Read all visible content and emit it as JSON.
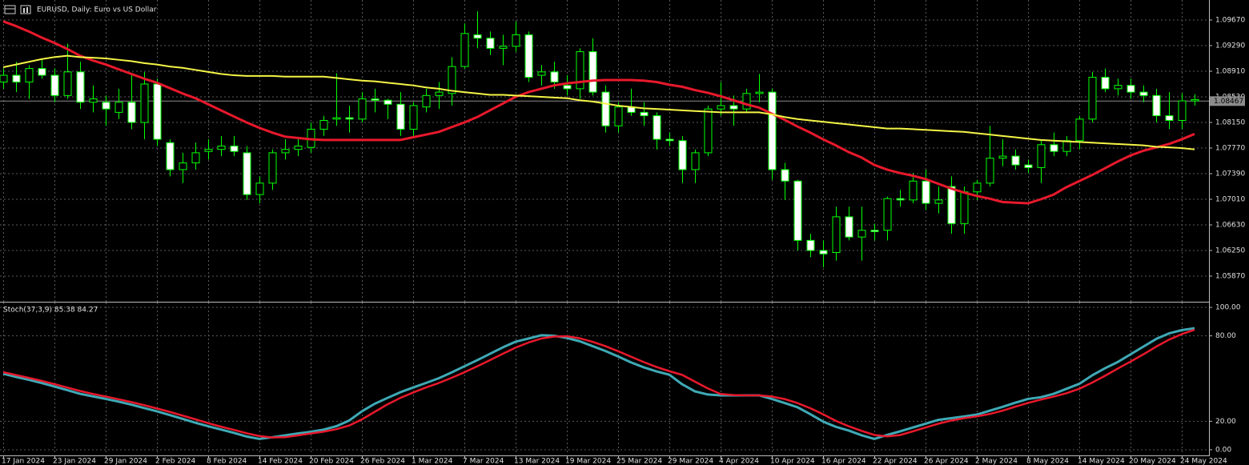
{
  "chart_data": [
    {
      "type": "candlestick",
      "title": "EURUSD, Daily:  Euro vs US Dollar",
      "categories": [
        "17 Jan 2024",
        null,
        null,
        null,
        "23 Jan 2024",
        null,
        null,
        null,
        "29 Jan 2024",
        null,
        null,
        null,
        "2 Feb 2024",
        null,
        null,
        null,
        "8 Feb 2024",
        null,
        null,
        null,
        "14 Feb 2024",
        null,
        null,
        null,
        "20 Feb 2024",
        null,
        null,
        null,
        "26 Feb 2024",
        null,
        null,
        null,
        "1 Mar 2024",
        null,
        null,
        null,
        "7 Mar 2024",
        null,
        null,
        null,
        "13 Mar 2024",
        null,
        null,
        null,
        "19 Mar 2024",
        null,
        null,
        null,
        "25 Mar 2024",
        null,
        null,
        null,
        "29 Mar 2024",
        null,
        null,
        null,
        "4 Apr 2024",
        null,
        null,
        null,
        "10 Apr 2024",
        null,
        null,
        null,
        "16 Apr 2024",
        null,
        null,
        null,
        "22 Apr 2024",
        null,
        null,
        null,
        "26 Apr 2024",
        null,
        null,
        null,
        "2 May 2024",
        null,
        null,
        null,
        "8 May 2024",
        null,
        null,
        null,
        "14 May 2024",
        null,
        null,
        null,
        "20 May 2024",
        null,
        null,
        null,
        "24 May 2024",
        null
      ],
      "open": [
        1.0875,
        1.0885,
        1.0875,
        1.0895,
        1.0885,
        1.0855,
        1.089,
        1.0845,
        1.0845,
        1.083,
        1.0845,
        1.0815,
        1.0872,
        1.0785,
        1.0745,
        1.0755,
        1.0772,
        1.0775,
        1.078,
        1.077,
        1.0708,
        1.0725,
        1.077,
        1.0775,
        1.0778,
        1.0805,
        1.082,
        1.0822,
        1.082,
        1.085,
        1.0848,
        1.0842,
        1.0805,
        1.0838,
        1.0855,
        1.0858,
        1.0898,
        1.0945,
        1.094,
        1.0925,
        1.0928,
        1.0945,
        1.0885,
        1.089,
        1.087,
        1.0865,
        1.092,
        1.086,
        1.081,
        1.0838,
        1.083,
        1.0825,
        1.079,
        1.0788,
        1.0745,
        1.077,
        1.0835,
        1.084,
        1.0835,
        1.0858,
        1.086,
        1.0745,
        1.0728,
        1.064,
        1.0625,
        1.0622,
        1.0675,
        1.0645,
        1.0655,
        1.0655,
        1.0702,
        1.07,
        1.0728,
        1.0695,
        1.072,
        1.0665,
        1.0712,
        1.0725,
        1.0762,
        1.0765,
        1.0752,
        1.0748,
        1.0782,
        1.0772,
        1.0788,
        1.082,
        1.0882,
        1.0865,
        1.087,
        1.086,
        1.0855,
        1.0825,
        1.0818,
        1.0847
      ],
      "high": [
        1.0895,
        1.0905,
        1.09,
        1.091,
        1.0895,
        1.0932,
        1.0905,
        1.087,
        1.0855,
        1.0865,
        1.0885,
        1.089,
        1.088,
        1.079,
        1.077,
        1.0785,
        1.079,
        1.0795,
        1.0795,
        1.078,
        1.0735,
        1.0775,
        1.079,
        1.079,
        1.0815,
        1.0825,
        1.0888,
        1.084,
        1.086,
        1.0865,
        1.085,
        1.086,
        1.0845,
        1.0865,
        1.0875,
        1.0912,
        1.0962,
        1.098,
        1.095,
        1.0945,
        1.0965,
        1.095,
        1.09,
        1.0905,
        1.0885,
        1.0925,
        1.094,
        1.087,
        1.0845,
        1.0865,
        1.0845,
        1.083,
        1.08,
        1.0795,
        1.0775,
        1.084,
        1.0875,
        1.0855,
        1.0865,
        1.0887,
        1.0865,
        1.0755,
        1.073,
        1.065,
        1.064,
        1.069,
        1.069,
        1.069,
        1.0665,
        1.0705,
        1.0715,
        1.074,
        1.0745,
        1.072,
        1.0735,
        1.072,
        1.073,
        1.081,
        1.079,
        1.0775,
        1.076,
        1.079,
        1.08,
        1.0795,
        1.0825,
        1.089,
        1.0895,
        1.088,
        1.088,
        1.087,
        1.0865,
        1.086,
        1.0858,
        1.0857
      ],
      "low": [
        1.0865,
        1.086,
        1.085,
        1.088,
        1.0845,
        1.085,
        1.0835,
        1.083,
        1.081,
        1.082,
        1.0805,
        1.079,
        1.078,
        1.0735,
        1.0725,
        1.0745,
        1.076,
        1.0765,
        1.0765,
        1.07,
        1.0695,
        1.0715,
        1.076,
        1.0765,
        1.077,
        1.0795,
        1.081,
        1.08,
        1.0815,
        1.083,
        1.082,
        1.0795,
        1.0795,
        1.083,
        1.0835,
        1.084,
        1.0895,
        1.0925,
        1.0915,
        1.09,
        1.092,
        1.0875,
        1.087,
        1.0865,
        1.0855,
        1.085,
        1.0855,
        1.08,
        1.08,
        1.0825,
        1.081,
        1.0775,
        1.078,
        1.0725,
        1.0725,
        1.0765,
        1.0825,
        1.081,
        1.083,
        1.0845,
        1.073,
        1.07,
        1.0625,
        1.0615,
        1.06,
        1.061,
        1.064,
        1.061,
        1.064,
        1.064,
        1.069,
        1.0695,
        1.0685,
        1.068,
        1.065,
        1.065,
        1.07,
        1.072,
        1.075,
        1.0745,
        1.074,
        1.0725,
        1.0765,
        1.0765,
        1.0775,
        1.0815,
        1.086,
        1.0855,
        1.085,
        1.0845,
        1.0815,
        1.0805,
        1.0805,
        1.084
      ],
      "close": [
        1.0885,
        1.0875,
        1.0895,
        1.0885,
        1.0855,
        1.089,
        1.0845,
        1.085,
        1.0835,
        1.0845,
        1.0815,
        1.0872,
        1.079,
        1.0745,
        1.0755,
        1.077,
        1.0775,
        1.078,
        1.0772,
        1.0708,
        1.0725,
        1.077,
        1.0775,
        1.078,
        1.0805,
        1.0818,
        1.0822,
        1.082,
        1.085,
        1.0848,
        1.0842,
        1.0805,
        1.084,
        1.0855,
        1.086,
        1.0898,
        1.0947,
        1.094,
        1.0925,
        1.0928,
        1.0945,
        1.0882,
        1.089,
        1.0875,
        1.0865,
        1.092,
        1.086,
        1.081,
        1.0838,
        1.083,
        1.0825,
        1.079,
        1.0788,
        1.0745,
        1.077,
        1.0835,
        1.084,
        1.0835,
        1.0858,
        1.086,
        1.0745,
        1.0728,
        1.064,
        1.0625,
        1.062,
        1.0675,
        1.0645,
        1.0655,
        1.0653,
        1.0702,
        1.07,
        1.0728,
        1.0695,
        1.07,
        1.0665,
        1.0712,
        1.0725,
        1.0762,
        1.0765,
        1.0752,
        1.0748,
        1.0782,
        1.0772,
        1.0788,
        1.082,
        1.0882,
        1.0865,
        1.087,
        1.086,
        1.0855,
        1.0825,
        1.0818,
        1.0847,
        1.0849
      ],
      "up_color": "#000000",
      "down_color": "#ffffff",
      "wick_color": "#00ff00",
      "series": [
        {
          "color": "#e8192c",
          "values": [
            1.0965,
            1.0958,
            1.095,
            1.0941,
            1.0933,
            1.0924,
            1.0914,
            1.0907,
            1.0901,
            1.0894,
            1.0887,
            1.088,
            1.0874,
            1.0866,
            1.0858,
            1.0851,
            1.0842,
            1.0833,
            1.0824,
            1.0815,
            1.0807,
            1.08,
            1.0794,
            1.0792,
            1.079,
            1.0789,
            1.0789,
            1.0789,
            1.0789,
            1.0789,
            1.0789,
            1.0789,
            1.0793,
            1.0797,
            1.0801,
            1.0808,
            1.0815,
            1.0823,
            1.0833,
            1.0843,
            1.0853,
            1.086,
            1.0865,
            1.087,
            1.0873,
            1.0875,
            1.0877,
            1.0878,
            1.0878,
            1.0878,
            1.0877,
            1.0875,
            1.0871,
            1.0868,
            1.0863,
            1.0859,
            1.0854,
            1.0848,
            1.0842,
            1.0837,
            1.0828,
            1.0819,
            1.0809,
            1.08,
            1.079,
            1.0781,
            1.0771,
            1.0763,
            1.0752,
            1.0745,
            1.074,
            1.0736,
            1.0731,
            1.0724,
            1.0717,
            1.0711,
            1.0706,
            1.0702,
            1.0697,
            1.0696,
            1.0695,
            1.0701,
            1.0708,
            1.0719,
            1.0728,
            1.0737,
            1.0747,
            1.0757,
            1.0766,
            1.0773,
            1.0778,
            1.0783,
            1.079,
            1.0798
          ]
        },
        {
          "color": "#f5f547",
          "values": [
            1.0897,
            1.0901,
            1.0905,
            1.0909,
            1.0912,
            1.0914,
            1.0912,
            1.0911,
            1.091,
            1.0908,
            1.0906,
            1.0903,
            1.0901,
            1.0898,
            1.0896,
            1.0893,
            1.089,
            1.0887,
            1.0885,
            1.0884,
            1.0884,
            1.0884,
            1.0883,
            1.0883,
            1.0883,
            1.0883,
            1.0881,
            1.0879,
            1.0877,
            1.0876,
            1.0874,
            1.0872,
            1.087,
            1.0867,
            1.0865,
            1.0862,
            1.086,
            1.0858,
            1.0856,
            1.0856,
            1.0855,
            1.0854,
            1.0853,
            1.0852,
            1.0851,
            1.0848,
            1.0846,
            1.0843,
            1.084,
            1.0838,
            1.0836,
            1.0835,
            1.0834,
            1.0833,
            1.0832,
            1.0831,
            1.083,
            1.083,
            1.083,
            1.083,
            1.0827,
            1.0823,
            1.082,
            1.0818,
            1.0816,
            1.0814,
            1.0812,
            1.081,
            1.0808,
            1.0806,
            1.0806,
            1.0805,
            1.0804,
            1.0803,
            1.0802,
            1.0801,
            1.0799,
            1.0797,
            1.0795,
            1.0793,
            1.0791,
            1.0789,
            1.0788,
            1.0787,
            1.0786,
            1.0785,
            1.0784,
            1.0783,
            1.0782,
            1.0781,
            1.0779,
            1.0778,
            1.0777,
            1.0775
          ]
        }
      ],
      "current_price": 1.08467,
      "ylim": [
        1.0549,
        1.09967
      ],
      "yticks": [
        {
          "value": 1.0967,
          "label": "1.09670"
        },
        {
          "value": 1.0929,
          "label": "1.09290"
        },
        {
          "value": 1.0891,
          "label": "1.08910"
        },
        {
          "value": 1.0853,
          "label": "1.08530"
        },
        {
          "value": 1.0815,
          "label": "1.08150"
        },
        {
          "value": 1.0777,
          "label": "1.07770"
        },
        {
          "value": 1.0739,
          "label": "1.07390"
        },
        {
          "value": 1.0701,
          "label": "1.07010"
        },
        {
          "value": 1.0663,
          "label": "1.06630"
        },
        {
          "value": 1.0625,
          "label": "1.06250"
        },
        {
          "value": 1.0587,
          "label": "1.05870"
        }
      ],
      "grid": true
    },
    {
      "type": "line",
      "title": "Stoch(37,3,9) 85.38 84.27",
      "series": [
        {
          "color": "#3fa9b5",
          "values": [
            53.4,
            51.2,
            49.1,
            46.9,
            44.4,
            41.9,
            39.3,
            37.5,
            35.7,
            33.8,
            31.7,
            29.3,
            27.0,
            24.4,
            21.7,
            19.0,
            16.5,
            14.2,
            11.9,
            9.3,
            7.6,
            8.8,
            10.1,
            11.4,
            12.6,
            14.1,
            16.5,
            20.5,
            27.0,
            32.3,
            36.4,
            40.4,
            43.7,
            46.9,
            50.2,
            54.3,
            58.6,
            62.9,
            67.4,
            71.9,
            75.9,
            78.1,
            80.4,
            80.1,
            78.5,
            76.2,
            72.8,
            69.4,
            65.5,
            61.4,
            57.9,
            55.0,
            52.7,
            46.0,
            41.0,
            38.8,
            38.2,
            38.2,
            38.2,
            38.2,
            35.7,
            32.8,
            29.9,
            25.0,
            19.8,
            16.1,
            13.5,
            10.2,
            7.6,
            10.4,
            12.9,
            15.6,
            18.3,
            21.0,
            22.2,
            23.4,
            24.7,
            27.4,
            30.1,
            33.0,
            35.7,
            36.9,
            39.3,
            42.8,
            46.3,
            52.2,
            57.2,
            61.6,
            67.0,
            72.4,
            77.8,
            81.7,
            84.0,
            85.38
          ]
        },
        {
          "color": "#e8192c",
          "values": [
            54.5,
            52.5,
            50.5,
            48.4,
            46.1,
            43.7,
            41.3,
            39.2,
            37.4,
            35.5,
            33.5,
            31.3,
            29.0,
            26.6,
            24.0,
            21.4,
            18.7,
            16.2,
            14.0,
            11.6,
            9.6,
            8.6,
            8.8,
            10.1,
            11.4,
            12.7,
            14.4,
            17.0,
            21.3,
            26.6,
            31.9,
            36.4,
            40.2,
            43.7,
            46.9,
            50.5,
            54.4,
            58.6,
            62.9,
            67.4,
            71.7,
            75.3,
            78.1,
            79.5,
            79.7,
            78.3,
            75.8,
            72.8,
            69.2,
            65.4,
            61.6,
            58.1,
            55.2,
            52.6,
            47.8,
            43.1,
            39.2,
            38.4,
            38.2,
            38.2,
            37.4,
            35.6,
            32.8,
            29.2,
            24.9,
            20.3,
            16.5,
            13.3,
            10.4,
            9.4,
            10.3,
            12.9,
            15.6,
            18.3,
            20.5,
            22.2,
            23.4,
            25.1,
            27.4,
            30.2,
            32.9,
            35.2,
            37.3,
            39.7,
            42.8,
            47.1,
            51.9,
            57.0,
            61.9,
            67.0,
            72.4,
            77.3,
            81.2,
            84.27
          ]
        }
      ],
      "ylim": [
        -3.4,
        103.4
      ],
      "yticks": [
        {
          "value": 100,
          "label": "100.00"
        },
        {
          "value": 80,
          "label": "80.00"
        },
        {
          "value": 20,
          "label": "20.00"
        },
        {
          "value": 0,
          "label": "0.00"
        }
      ],
      "grid": true
    }
  ]
}
